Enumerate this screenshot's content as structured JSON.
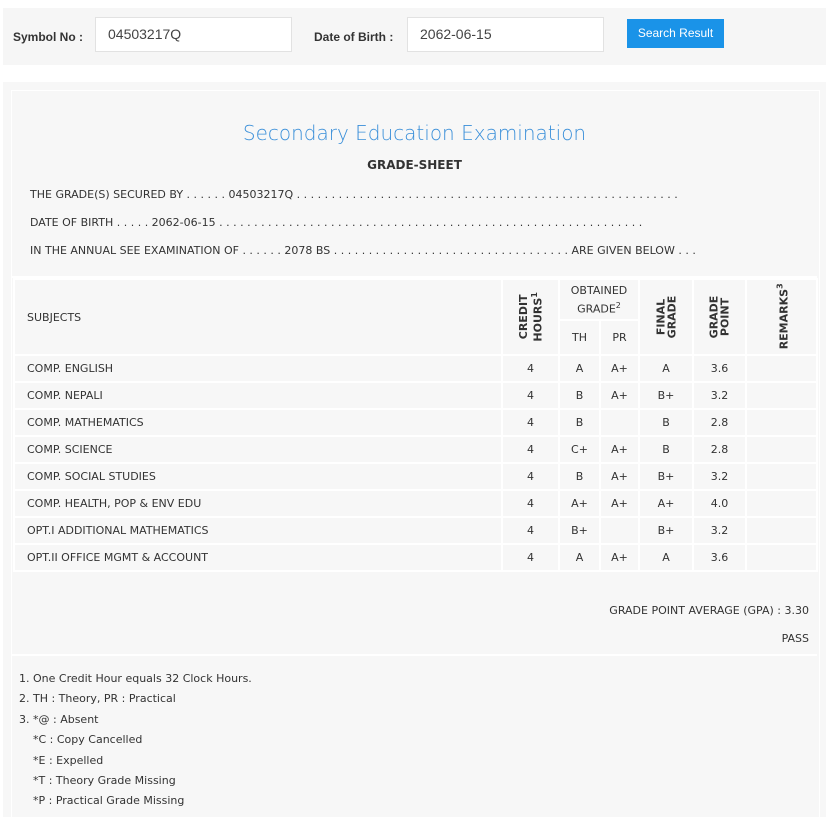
{
  "search": {
    "symbol_label": "Symbol No :",
    "symbol_value": "04503217Q",
    "dob_label": "Date of Birth :",
    "dob_value": "2062-06-15",
    "button_label": "Search Result",
    "accent_color": "#1a93e8"
  },
  "sheet": {
    "title": "Secondary Education Examination",
    "subtitle": "GRADE-SHEET",
    "line1": "THE GRADE(S) SECURED BY . . . . . . 04503217Q . . . . . . . . . . . . . . . . . . . . . . . . . . . . . . . . . . . . . . . . . . . . . . . . . . . . . . .",
    "line2": "DATE OF BIRTH . . . . . 2062-06-15 . . . . . . . . . . . . . . . . . . . . . . . . . . . . . . . . . . . . . . . . . . . . . . . . . . . . . . . . . . . . .",
    "line3": "IN THE ANNUAL SEE EXAMINATION OF . . . . . . 2078 BS . . . . . . . . . . . . . . . . . . . . . . . . . . . . . . . . . . ARE GIVEN BELOW . . .",
    "title_color": "#3a8fd9"
  },
  "table": {
    "headers": {
      "subjects": "SUBJECTS",
      "credit1": "CREDIT",
      "credit2": "HOURS",
      "credit_sup": "1",
      "obtained1": "OBTAINED",
      "obtained2": "GRADE",
      "obtained_sup": "2",
      "th": "TH",
      "pr": "PR",
      "final1": "FINAL",
      "final2": "GRADE",
      "gp1": "GRADE",
      "gp2": "POINT",
      "remarks": "REMARKS",
      "remarks_sup": "3"
    },
    "rows": [
      {
        "subject": "COMP. ENGLISH",
        "credit": "4",
        "th": "A",
        "pr": "A+",
        "final": "A",
        "gp": "3.6",
        "remarks": ""
      },
      {
        "subject": "COMP. NEPALI",
        "credit": "4",
        "th": "B",
        "pr": "A+",
        "final": "B+",
        "gp": "3.2",
        "remarks": ""
      },
      {
        "subject": "COMP. MATHEMATICS",
        "credit": "4",
        "th": "B",
        "pr": "",
        "final": "B",
        "gp": "2.8",
        "remarks": ""
      },
      {
        "subject": "COMP. SCIENCE",
        "credit": "4",
        "th": "C+",
        "pr": "A+",
        "final": "B",
        "gp": "2.8",
        "remarks": ""
      },
      {
        "subject": "COMP. SOCIAL STUDIES",
        "credit": "4",
        "th": "B",
        "pr": "A+",
        "final": "B+",
        "gp": "3.2",
        "remarks": ""
      },
      {
        "subject": "COMP. HEALTH, POP & ENV EDU",
        "credit": "4",
        "th": "A+",
        "pr": "A+",
        "final": "A+",
        "gp": "4.0",
        "remarks": ""
      },
      {
        "subject": "OPT.I ADDITIONAL MATHEMATICS",
        "credit": "4",
        "th": "B+",
        "pr": "",
        "final": "B+",
        "gp": "3.2",
        "remarks": ""
      },
      {
        "subject": "OPT.II OFFICE MGMT & ACCOUNT",
        "credit": "4",
        "th": "A",
        "pr": "A+",
        "final": "A",
        "gp": "3.6",
        "remarks": ""
      }
    ]
  },
  "result": {
    "gpa": "GRADE POINT AVERAGE (GPA) : 3.30",
    "status": "PASS"
  },
  "notes": [
    "1. One Credit Hour equals 32 Clock Hours.",
    "2. TH : Theory, PR : Practical",
    "3. *@ : Absent",
    "*C : Copy Cancelled",
    "*E : Expelled",
    "*T : Theory Grade Missing",
    "*P : Practical Grade Missing"
  ]
}
